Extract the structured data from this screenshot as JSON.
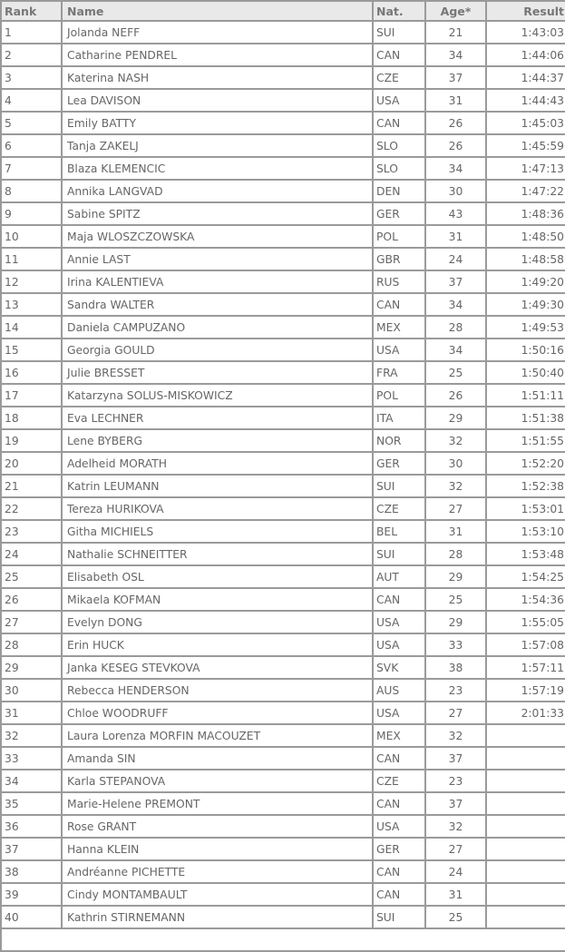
{
  "headers": {
    "rank": "Rank",
    "name": "Name",
    "nat": "Nat.",
    "age": "Age*",
    "result": "Result"
  },
  "rows": [
    [
      "1",
      "Jolanda NEFF",
      "SUI",
      "21",
      "1:43:03"
    ],
    [
      "2",
      "Catharine PENDREL",
      "CAN",
      "34",
      "1:44:06"
    ],
    [
      "3",
      "Katerina NASH",
      "CZE",
      "37",
      "1:44:37"
    ],
    [
      "4",
      "Lea DAVISON",
      "USA",
      "31",
      "1:44:43"
    ],
    [
      "5",
      "Emily BATTY",
      "CAN",
      "26",
      "1:45:03"
    ],
    [
      "6",
      "Tanja ZAKELJ",
      "SLO",
      "26",
      "1:45:59"
    ],
    [
      "7",
      "Blaza KLEMENCIC",
      "SLO",
      "34",
      "1:47:13"
    ],
    [
      "8",
      "Annika LANGVAD",
      "DEN",
      "30",
      "1:47:22"
    ],
    [
      "9",
      "Sabine SPITZ",
      "GER",
      "43",
      "1:48:36"
    ],
    [
      "10",
      "Maja WLOSZCZOWSKA",
      "POL",
      "31",
      "1:48:50"
    ],
    [
      "11",
      "Annie LAST",
      "GBR",
      "24",
      "1:48:58"
    ],
    [
      "12",
      "Irina KALENTIEVA",
      "RUS",
      "37",
      "1:49:20"
    ],
    [
      "13",
      "Sandra WALTER",
      "CAN",
      "34",
      "1:49:30"
    ],
    [
      "14",
      "Daniela CAMPUZANO",
      "MEX",
      "28",
      "1:49:53"
    ],
    [
      "15",
      "Georgia GOULD",
      "USA",
      "34",
      "1:50:16"
    ],
    [
      "16",
      "Julie BRESSET",
      "FRA",
      "25",
      "1:50:40"
    ],
    [
      "17",
      "Katarzyna SOLUS-MISKOWICZ",
      "POL",
      "26",
      "1:51:11"
    ],
    [
      "18",
      "Eva LECHNER",
      "ITA",
      "29",
      "1:51:38"
    ],
    [
      "19",
      "Lene BYBERG",
      "NOR",
      "32",
      "1:51:55"
    ],
    [
      "20",
      "Adelheid MORATH",
      "GER",
      "30",
      "1:52:20"
    ],
    [
      "21",
      "Katrin LEUMANN",
      "SUI",
      "32",
      "1:52:38"
    ],
    [
      "22",
      "Tereza HURIKOVA",
      "CZE",
      "27",
      "1:53:01"
    ],
    [
      "23",
      "Githa MICHIELS",
      "BEL",
      "31",
      "1:53:10"
    ],
    [
      "24",
      "Nathalie SCHNEITTER",
      "SUI",
      "28",
      "1:53:48"
    ],
    [
      "25",
      "Elisabeth OSL",
      "AUT",
      "29",
      "1:54:25"
    ],
    [
      "26",
      "Mikaela KOFMAN",
      "CAN",
      "25",
      "1:54:36"
    ],
    [
      "27",
      "Evelyn DONG",
      "USA",
      "29",
      "1:55:05"
    ],
    [
      "28",
      "Erin HUCK",
      "USA",
      "33",
      "1:57:08"
    ],
    [
      "29",
      "Janka KESEG STEVKOVA",
      "SVK",
      "38",
      "1:57:11"
    ],
    [
      "30",
      "Rebecca HENDERSON",
      "AUS",
      "23",
      "1:57:19"
    ],
    [
      "31",
      "Chloe WOODRUFF",
      "USA",
      "27",
      "2:01:33"
    ],
    [
      "32",
      "Laura Lorenza MORFIN MACOUZET",
      "MEX",
      "32",
      ""
    ],
    [
      "33",
      "Amanda SIN",
      "CAN",
      "37",
      ""
    ],
    [
      "34",
      "Karla STEPANOVA",
      "CZE",
      "23",
      ""
    ],
    [
      "35",
      "Marie-Helene PREMONT",
      "CAN",
      "37",
      ""
    ],
    [
      "36",
      "Rose GRANT",
      "USA",
      "32",
      ""
    ],
    [
      "37",
      "Hanna KLEIN",
      "GER",
      "27",
      ""
    ],
    [
      "38",
      "Andréanne PICHETTE",
      "CAN",
      "24",
      ""
    ],
    [
      "39",
      "Cindy MONTAMBAULT",
      "CAN",
      "31",
      ""
    ],
    [
      "40",
      "Kathrin STIRNEMANN",
      "SUI",
      "25",
      ""
    ]
  ]
}
